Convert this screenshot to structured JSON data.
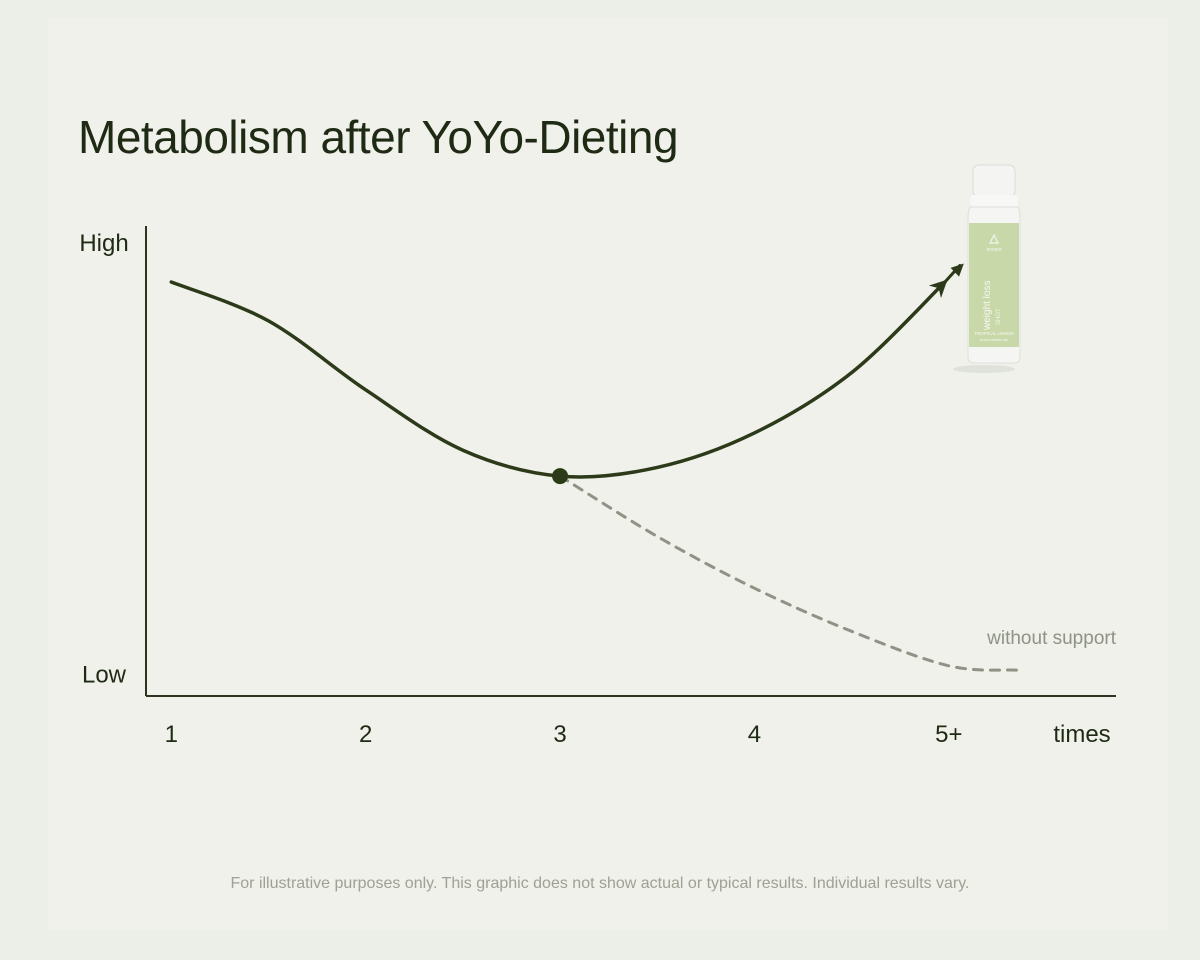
{
  "title": "Metabolism after YoYo-Dieting",
  "footnote": "For illustrative purposes only. This graphic does not show actual or typical results. Individual results vary.",
  "product": {
    "brand": "envers",
    "name": "weight loss",
    "sub": "SHOT",
    "flavor": "TROPICAL LEMON",
    "url": "envers-selfcare.com"
  },
  "colors": {
    "background": "#eff1ea",
    "main_line": "#2d3a19",
    "dashed_line": "#8f9386",
    "axis": "#2a3420",
    "label_dark": "#1f2a14",
    "label_muted": "#8f9386",
    "bottle_label": "#c9d8a8"
  },
  "chart_data": {
    "type": "line",
    "title": "Metabolism after YoYo-Dieting",
    "xlabel": "times",
    "ylabel": "",
    "x_ticks": [
      "1",
      "2",
      "3",
      "4",
      "5+"
    ],
    "x_tick_values": [
      1,
      2,
      3,
      4,
      5
    ],
    "y_ticks": [
      "Low",
      "High"
    ],
    "y_tick_values": [
      0,
      1
    ],
    "xlim": [
      0.87,
      5.86
    ],
    "ylim": [
      -0.05,
      1.04
    ],
    "grid": false,
    "legend": "none",
    "series": [
      {
        "style": "solid",
        "arrow_end": true,
        "x": [
          1.0,
          1.5,
          2.0,
          2.5,
          3.0,
          3.5,
          4.0,
          4.5,
          4.98
        ],
        "y": [
          0.91,
          0.82,
          0.66,
          0.52,
          0.46,
          0.48,
          0.56,
          0.7,
          0.91
        ]
      },
      {
        "name": "without support",
        "style": "dashed",
        "x": [
          3.0,
          3.5,
          4.0,
          4.5,
          5.0,
          5.35
        ],
        "y": [
          0.46,
          0.32,
          0.2,
          0.1,
          0.02,
          0.01
        ]
      }
    ],
    "markers": [
      {
        "x": 3.0,
        "y": 0.46
      }
    ]
  }
}
